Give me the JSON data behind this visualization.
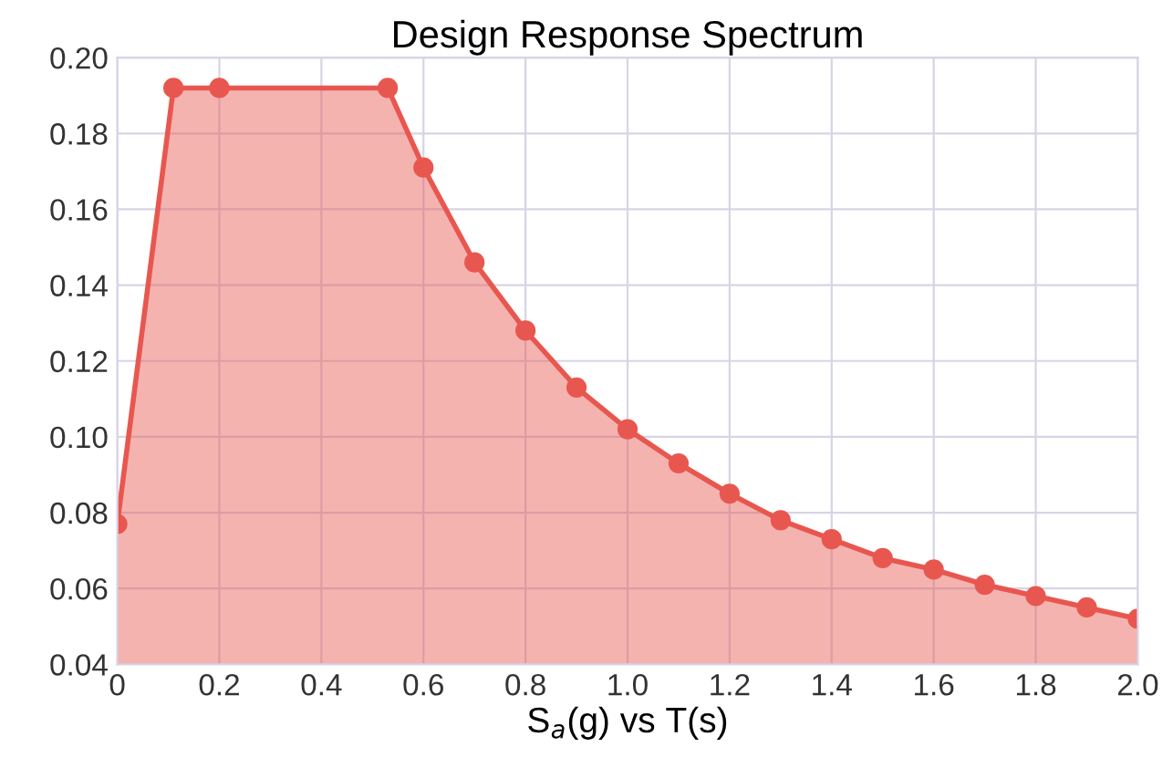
{
  "chart_data": {
    "type": "area",
    "title": "Design Response Spectrum",
    "xlabel": "S$_{a}$(g) vs T(s)",
    "series": [
      {
        "color": "#e8574f",
        "x": [
          0,
          0.11,
          0.2,
          0.53,
          0.6,
          0.7,
          0.8,
          0.9,
          1.0,
          1.1,
          1.2,
          1.3,
          1.4,
          1.5,
          1.6,
          1.7,
          1.8,
          1.9,
          2.0
        ],
        "values": [
          0.077,
          0.192,
          0.192,
          0.192,
          0.171,
          0.146,
          0.128,
          0.113,
          0.102,
          0.093,
          0.085,
          0.078,
          0.073,
          0.068,
          0.065,
          0.061,
          0.058,
          0.055,
          0.052
        ]
      }
    ],
    "xlim": [
      0,
      2.0
    ],
    "xticks": [
      0,
      0.2,
      0.4,
      0.6,
      0.8,
      {
        "value": 1,
        "label": "1.0"
      },
      1.2,
      1.4,
      1.6,
      1.8,
      {
        "value": 2,
        "label": "2.0"
      }
    ],
    "ylim": [
      0.04,
      0.2
    ],
    "yticks": [
      0.04,
      0.06,
      0.08,
      {
        "value": 0.1,
        "label": "0.10"
      },
      0.12,
      0.14,
      0.16,
      0.18,
      {
        "value": 0.2,
        "label": "0.20"
      }
    ],
    "grid": true,
    "marker": "circle"
  }
}
